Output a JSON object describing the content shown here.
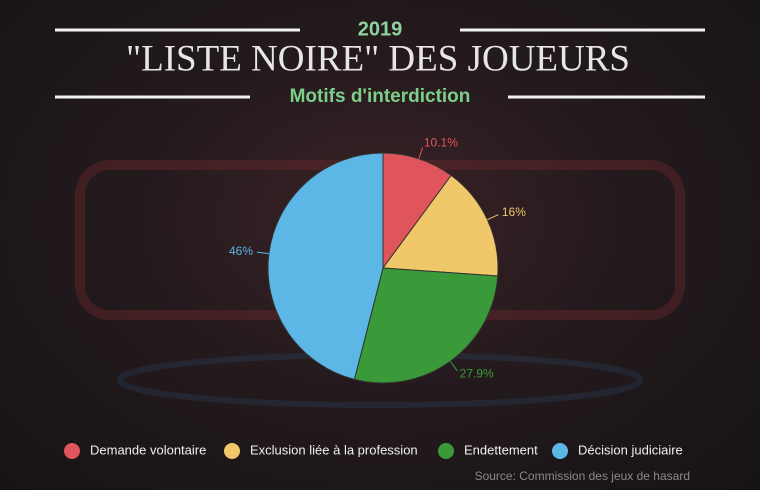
{
  "chart_data": {
    "type": "pie",
    "year": "2019",
    "title": "\"LISTE NOIRE\" DES JOUEURS",
    "subtitle": "Motifs d'interdiction",
    "categories": [
      "Demande volontaire",
      "Exclusion liée à la profession",
      "Endettement",
      "Décision judiciaire"
    ],
    "values": [
      10.1,
      16,
      27.9,
      46
    ],
    "value_labels": [
      "10.1%",
      "16%",
      "27.9%",
      "46%"
    ],
    "colors": [
      "#e0555b",
      "#f0c86a",
      "#3a9a3a",
      "#5cb6e6"
    ],
    "source": "Source: Commission des jeux de hasard"
  }
}
